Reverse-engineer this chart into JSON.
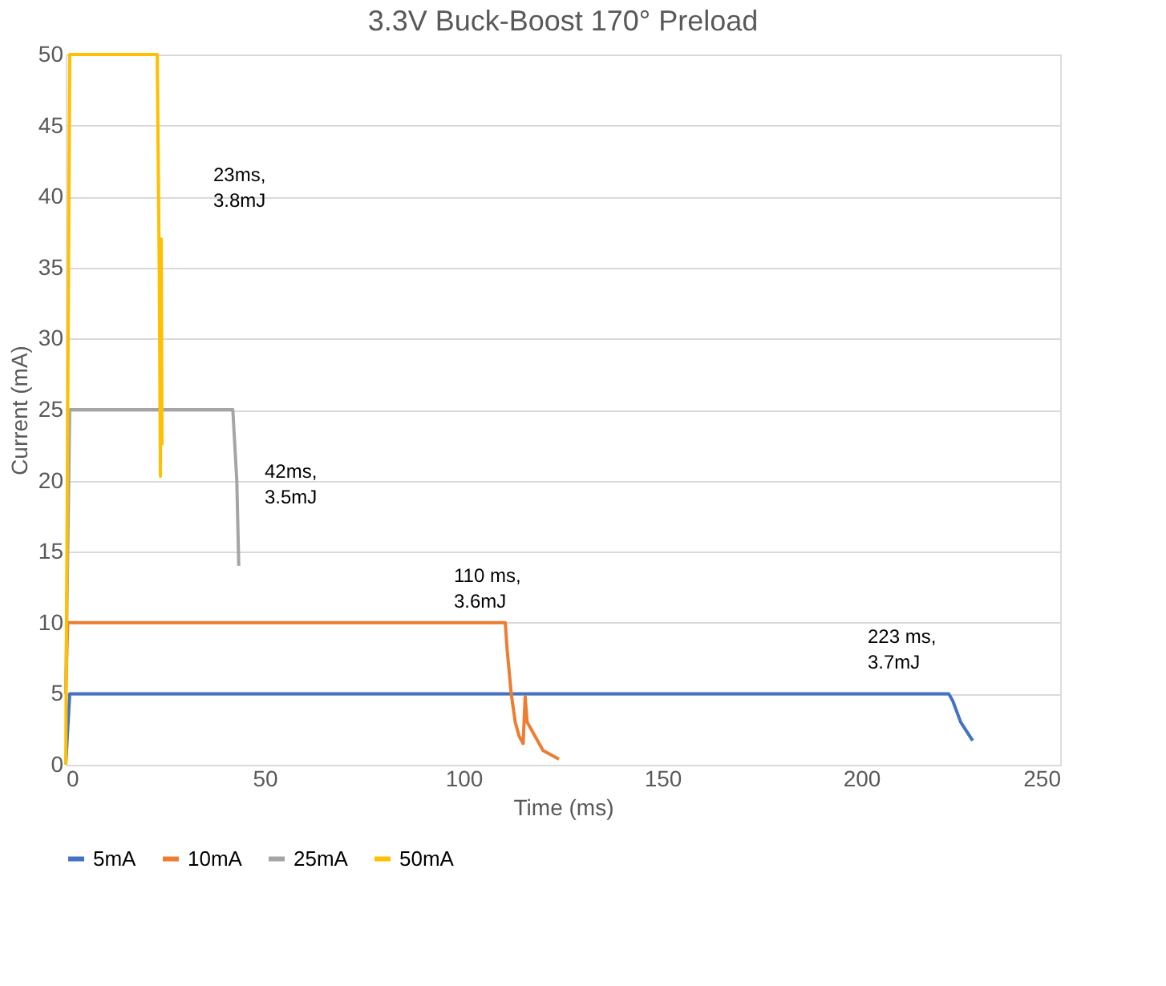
{
  "chart_data": {
    "type": "line",
    "title": "3.3V Buck-Boost 170° Preload",
    "xlabel": "Time (ms)",
    "ylabel": "Current (mA)",
    "xlim": [
      0,
      250
    ],
    "xticks": [
      0,
      50,
      100,
      150,
      200,
      250
    ],
    "ylim": [
      0,
      50
    ],
    "yticks": [
      0,
      5,
      10,
      15,
      20,
      25,
      30,
      35,
      40,
      45,
      50
    ],
    "grid": "y",
    "legend": "bottom",
    "line_style": "solid",
    "marker": "none",
    "series": [
      {
        "name": "5mA",
        "color": "#4472c4",
        "x": [
          0,
          1,
          50,
          100,
          150,
          200,
          222,
          223,
          225,
          228
        ],
        "values": [
          0,
          5,
          5,
          5,
          5,
          5,
          5,
          4.5,
          3,
          1.7
        ]
      },
      {
        "name": "10mA",
        "color": "#ed7d31",
        "x": [
          0,
          0.5,
          50,
          110.5,
          111,
          112,
          113,
          114,
          115,
          115.5,
          116,
          118,
          120,
          124
        ],
        "values": [
          5,
          10,
          10,
          10,
          8,
          5,
          3,
          2,
          1.5,
          4.8,
          3,
          2,
          1,
          0.4
        ]
      },
      {
        "name": "25mA",
        "color": "#a5a5a5",
        "x": [
          0,
          1,
          20,
          40,
          42,
          43,
          43.5
        ],
        "values": [
          5,
          25,
          25,
          25,
          25,
          20,
          14
        ]
      },
      {
        "name": "50mA",
        "color": "#ffc000",
        "x": [
          0,
          0.5,
          1,
          10,
          23,
          23.5,
          23.8,
          24,
          24.2
        ],
        "values": [
          0,
          25,
          50,
          50,
          50,
          35,
          20.3,
          37,
          22.5
        ]
      }
    ],
    "annotations": [
      "23ms,\n3.8mJ",
      "42ms,\n3.5mJ",
      "110 ms,\n3.6mJ",
      "223 ms,\n3.7mJ"
    ]
  }
}
